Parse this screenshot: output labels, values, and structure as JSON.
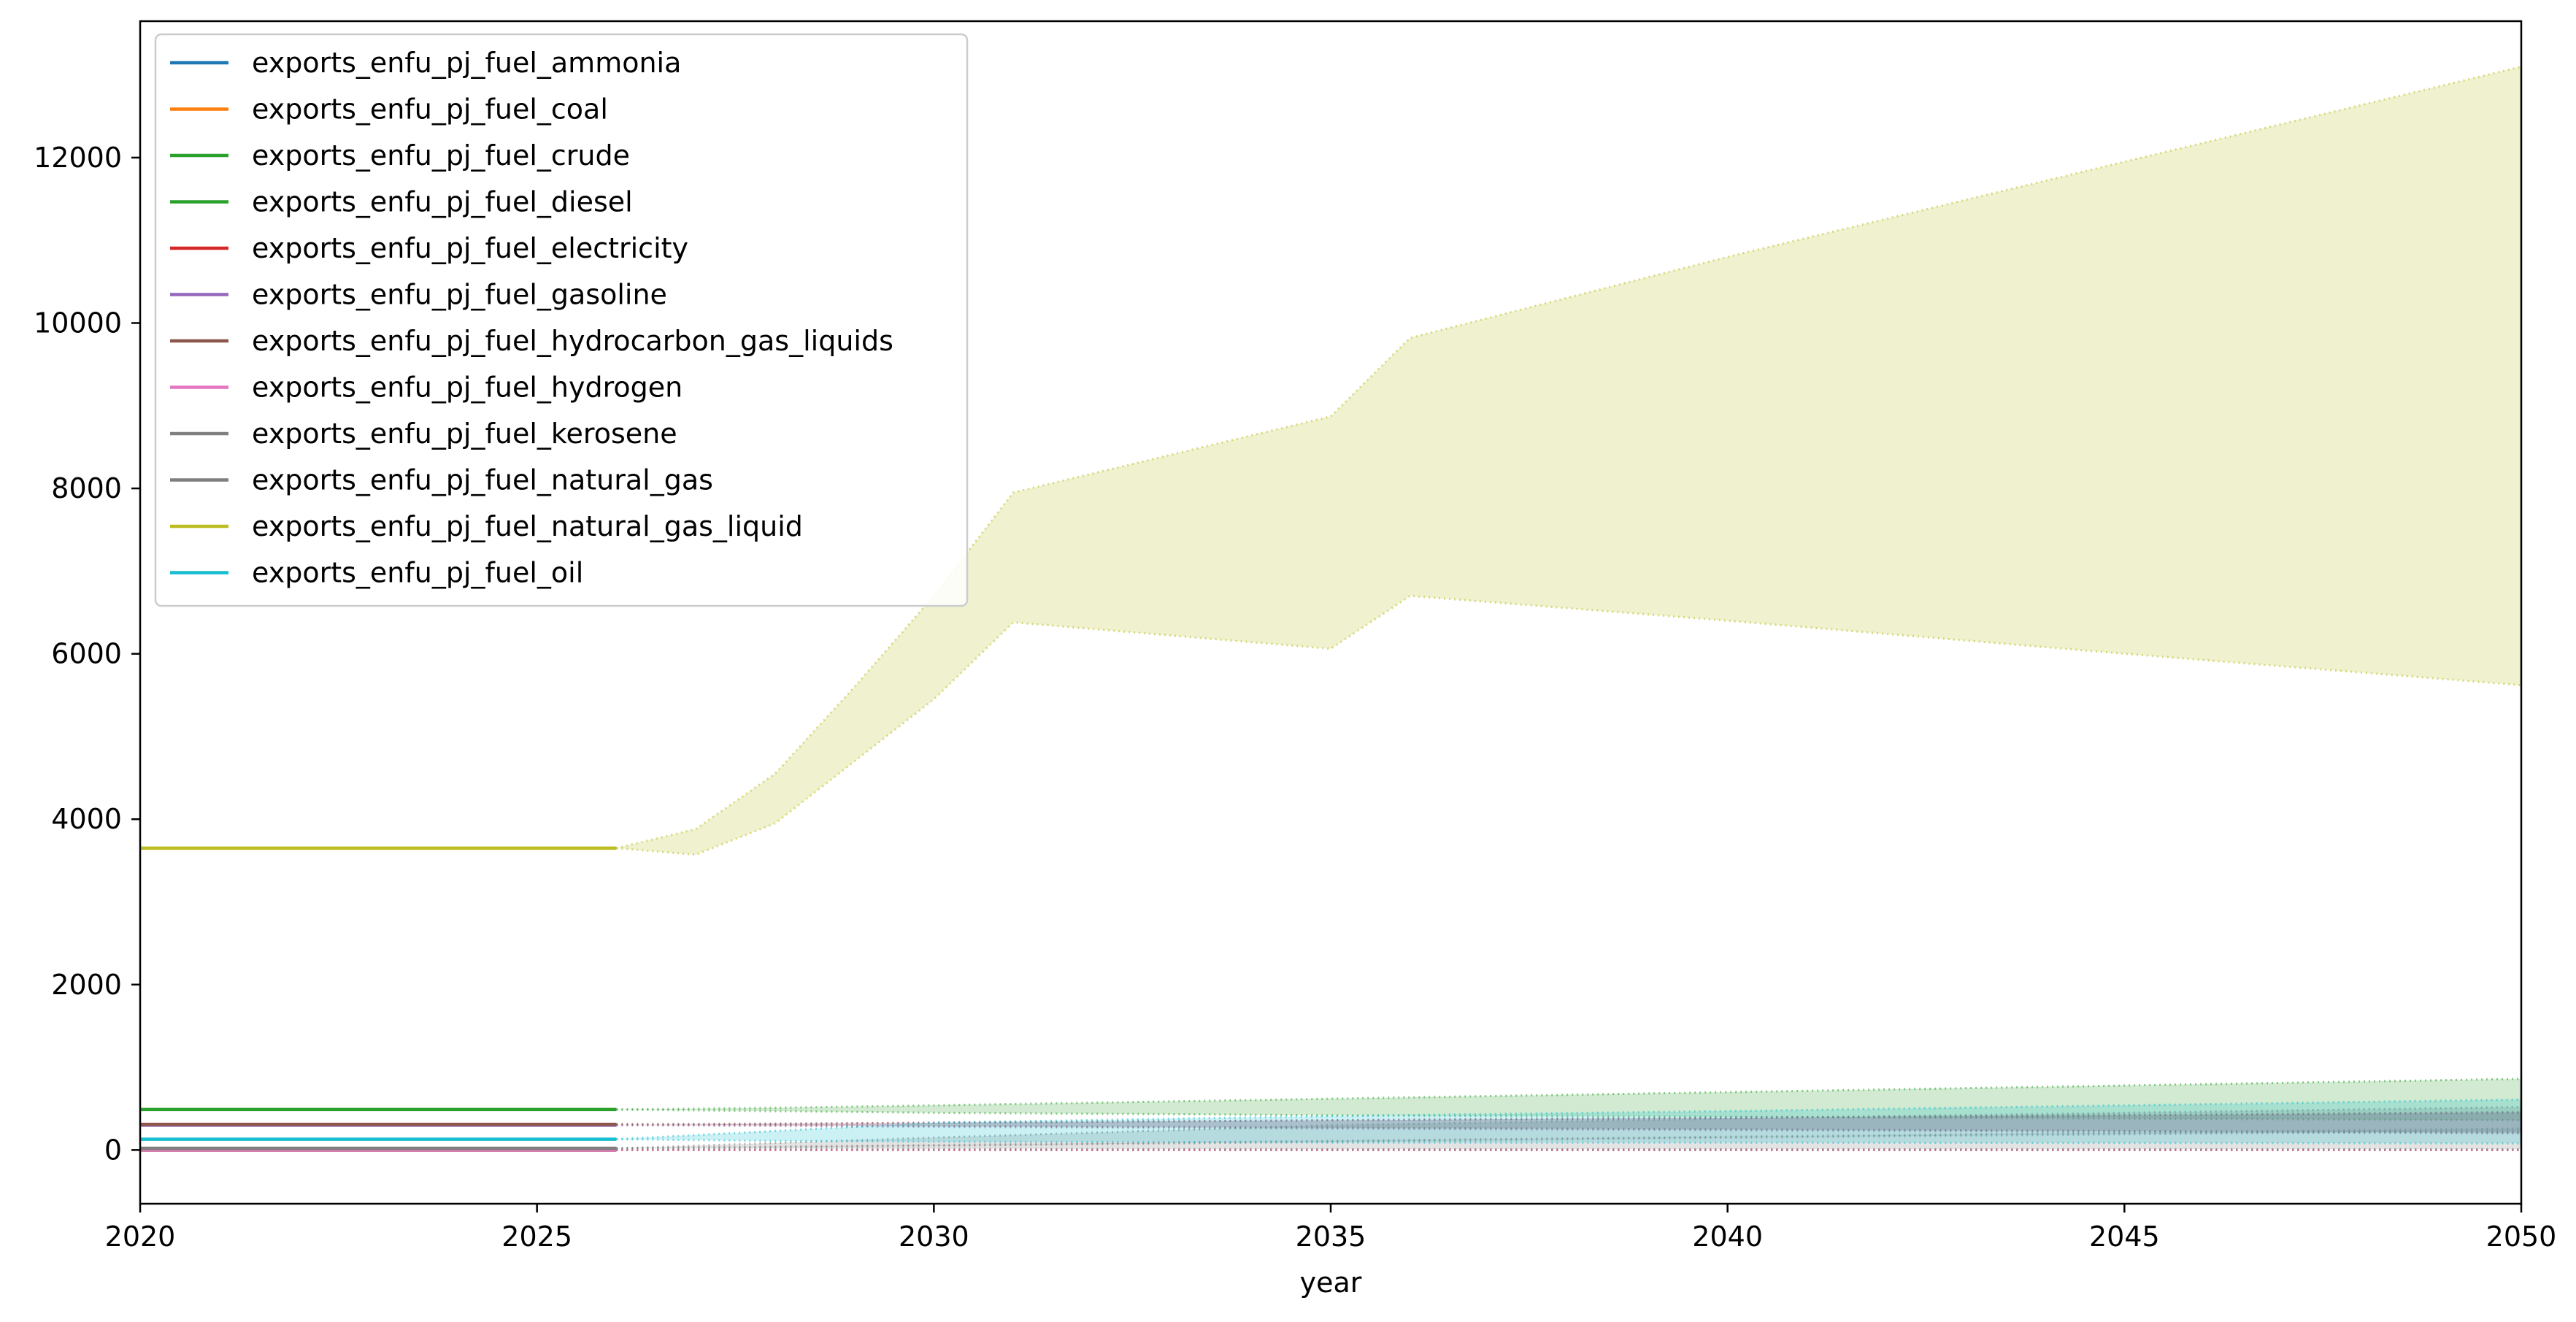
{
  "chart_data": {
    "type": "line",
    "title": "",
    "xlabel": "year",
    "ylabel": "",
    "xlim": [
      2020,
      2050
    ],
    "ylim": [
      -650,
      13650
    ],
    "x_ticks": [
      2020,
      2025,
      2030,
      2035,
      2040,
      2045,
      2050
    ],
    "y_ticks": [
      0,
      2000,
      4000,
      6000,
      8000,
      10000,
      12000
    ],
    "grid": false,
    "legend_position": "top-left",
    "historical_end": 2026,
    "series": [
      {
        "name": "exports_enfu_pj_fuel_ammonia",
        "color": "#1f77b4",
        "historical": 0,
        "band": {
          "x": [
            2026,
            2030,
            2035,
            2040,
            2045,
            2050
          ],
          "upper": [
            0,
            0,
            0,
            0,
            0,
            0
          ],
          "lower": [
            0,
            0,
            0,
            0,
            0,
            0
          ]
        }
      },
      {
        "name": "exports_enfu_pj_fuel_coal",
        "color": "#ff7f0e",
        "historical": 0,
        "band": {
          "x": [
            2026,
            2030,
            2035,
            2040,
            2045,
            2050
          ],
          "upper": [
            0,
            0,
            0,
            0,
            0,
            0
          ],
          "lower": [
            0,
            0,
            0,
            0,
            0,
            0
          ]
        }
      },
      {
        "name": "exports_enfu_pj_fuel_crude",
        "color": "#2ca02c",
        "historical": 0,
        "band": {
          "x": [
            2026,
            2030,
            2035,
            2040,
            2045,
            2050
          ],
          "upper": [
            0,
            0,
            0,
            0,
            0,
            0
          ],
          "lower": [
            0,
            0,
            0,
            0,
            0,
            0
          ]
        }
      },
      {
        "name": "exports_enfu_pj_fuel_diesel",
        "color": "#2ca02c",
        "historical": 490,
        "band": {
          "x": [
            2026,
            2028,
            2030,
            2035,
            2040,
            2045,
            2050
          ],
          "upper": [
            490,
            510,
            540,
            620,
            700,
            780,
            860
          ],
          "lower": [
            490,
            470,
            450,
            420,
            400,
            380,
            360
          ]
        }
      },
      {
        "name": "exports_enfu_pj_fuel_electricity",
        "color": "#d62728",
        "historical": 0,
        "band": {
          "x": [
            2026,
            2030,
            2035,
            2040,
            2045,
            2050
          ],
          "upper": [
            0,
            0,
            0,
            0,
            0,
            0
          ],
          "lower": [
            0,
            0,
            0,
            0,
            0,
            0
          ]
        }
      },
      {
        "name": "exports_enfu_pj_fuel_gasoline",
        "color": "#9467bd",
        "historical": 300,
        "band": {
          "x": [
            2026,
            2030,
            2035,
            2040,
            2045,
            2050
          ],
          "upper": [
            300,
            330,
            360,
            390,
            420,
            450
          ],
          "lower": [
            300,
            280,
            260,
            240,
            220,
            200
          ]
        }
      },
      {
        "name": "exports_enfu_pj_fuel_hydrocarbon_gas_liquids",
        "color": "#8c564b",
        "historical": 310,
        "band": {
          "x": [
            2026,
            2030,
            2035,
            2040,
            2045,
            2050
          ],
          "upper": [
            310,
            330,
            360,
            390,
            420,
            460
          ],
          "lower": [
            310,
            290,
            270,
            250,
            230,
            210
          ]
        }
      },
      {
        "name": "exports_enfu_pj_fuel_hydrogen",
        "color": "#e377c2",
        "historical": 0,
        "band": {
          "x": [
            2026,
            2030,
            2035,
            2040,
            2045,
            2050
          ],
          "upper": [
            0,
            0,
            0,
            0,
            0,
            0
          ],
          "lower": [
            0,
            0,
            0,
            0,
            0,
            0
          ]
        }
      },
      {
        "name": "exports_enfu_pj_fuel_kerosene",
        "color": "#7f7f7f",
        "historical": 20,
        "band": {
          "x": [
            2026,
            2030,
            2035,
            2040,
            2045,
            2050
          ],
          "upper": [
            20,
            60,
            110,
            160,
            210,
            260
          ],
          "lower": [
            20,
            15,
            10,
            10,
            10,
            10
          ]
        }
      },
      {
        "name": "exports_enfu_pj_fuel_natural_gas",
        "color": "#7f7f7f",
        "historical": 20,
        "band": {
          "x": [
            2026,
            2030,
            2035,
            2040,
            2045,
            2050
          ],
          "upper": [
            20,
            150,
            300,
            380,
            450,
            520
          ],
          "lower": [
            20,
            50,
            100,
            150,
            190,
            230
          ]
        }
      },
      {
        "name": "exports_enfu_pj_fuel_natural_gas_liquid",
        "color": "#bcbd22",
        "historical": 3650,
        "band": {
          "x": [
            2026,
            2027,
            2028,
            2029,
            2030,
            2031,
            2035,
            2036,
            2040,
            2045,
            2050
          ],
          "upper": [
            3650,
            3880,
            4550,
            5600,
            6700,
            7950,
            8870,
            9820,
            10800,
            11950,
            13100
          ],
          "lower": [
            3650,
            3570,
            3950,
            4700,
            5450,
            6380,
            6060,
            6700,
            6400,
            6000,
            5620
          ]
        }
      },
      {
        "name": "exports_enfu_pj_fuel_oil",
        "color": "#17becf",
        "historical": 130,
        "band": {
          "x": [
            2026,
            2028,
            2030,
            2035,
            2040,
            2045,
            2050
          ],
          "upper": [
            130,
            230,
            330,
            410,
            470,
            540,
            610
          ],
          "lower": [
            130,
            110,
            100,
            90,
            90,
            85,
            80
          ]
        }
      }
    ]
  }
}
